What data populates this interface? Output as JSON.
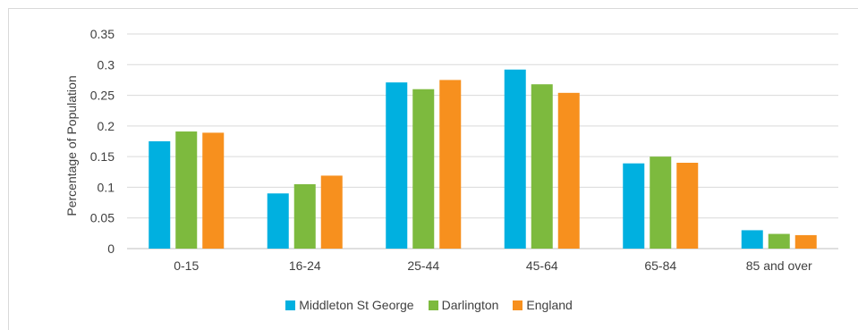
{
  "chart_data": {
    "type": "bar",
    "title": "",
    "xlabel": "",
    "ylabel": "Percentage of Population",
    "ylim": [
      0,
      0.35
    ],
    "yticks": [
      "0",
      "0.05",
      "0.1",
      "0.15",
      "0.2",
      "0.25",
      "0.3",
      "0.35"
    ],
    "categories": [
      "0-15",
      "16-24",
      "25-44",
      "45-64",
      "65-84",
      "85 and over"
    ],
    "series": [
      {
        "name": "Middleton St George",
        "color": "#00b0e0",
        "values": [
          0.175,
          0.09,
          0.271,
          0.292,
          0.139,
          0.03
        ]
      },
      {
        "name": "Darlington",
        "color": "#7dba3e",
        "values": [
          0.191,
          0.105,
          0.26,
          0.268,
          0.15,
          0.024
        ]
      },
      {
        "name": "England",
        "color": "#f7901e",
        "values": [
          0.189,
          0.119,
          0.275,
          0.254,
          0.14,
          0.022
        ]
      }
    ],
    "grid": true,
    "legend_position": "bottom"
  }
}
